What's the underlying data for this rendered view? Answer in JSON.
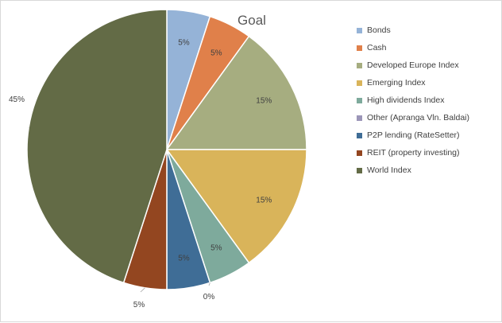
{
  "chart_data": {
    "type": "pie",
    "title": "Goal",
    "legend_position": "right",
    "start_angle_deg": 0,
    "direction": "clockwise",
    "slices": [
      {
        "label": "Bonds",
        "value": 5,
        "display": "5%",
        "color": "#95b3d7"
      },
      {
        "label": "Cash",
        "value": 5,
        "display": "5%",
        "color": "#e0804a"
      },
      {
        "label": "Developed Europe Index",
        "value": 15,
        "display": "15%",
        "color": "#a6ad80"
      },
      {
        "label": "Emerging Index",
        "value": 15,
        "display": "15%",
        "color": "#d9b45a"
      },
      {
        "label": "High dividends Index",
        "value": 5,
        "display": "5%",
        "color": "#7eaa9c"
      },
      {
        "label": "Other (Apranga Vln. Baldai)",
        "value": 0,
        "display": "0%",
        "color": "#9c96b8"
      },
      {
        "label": "P2P lending (RateSetter)",
        "value": 5,
        "display": "5%",
        "color": "#3f6d96"
      },
      {
        "label": "REIT (property investing)",
        "value": 5,
        "display": "5%",
        "color": "#934620"
      },
      {
        "label": "World Index",
        "value": 45,
        "display": "45%",
        "color": "#636b46"
      }
    ]
  }
}
